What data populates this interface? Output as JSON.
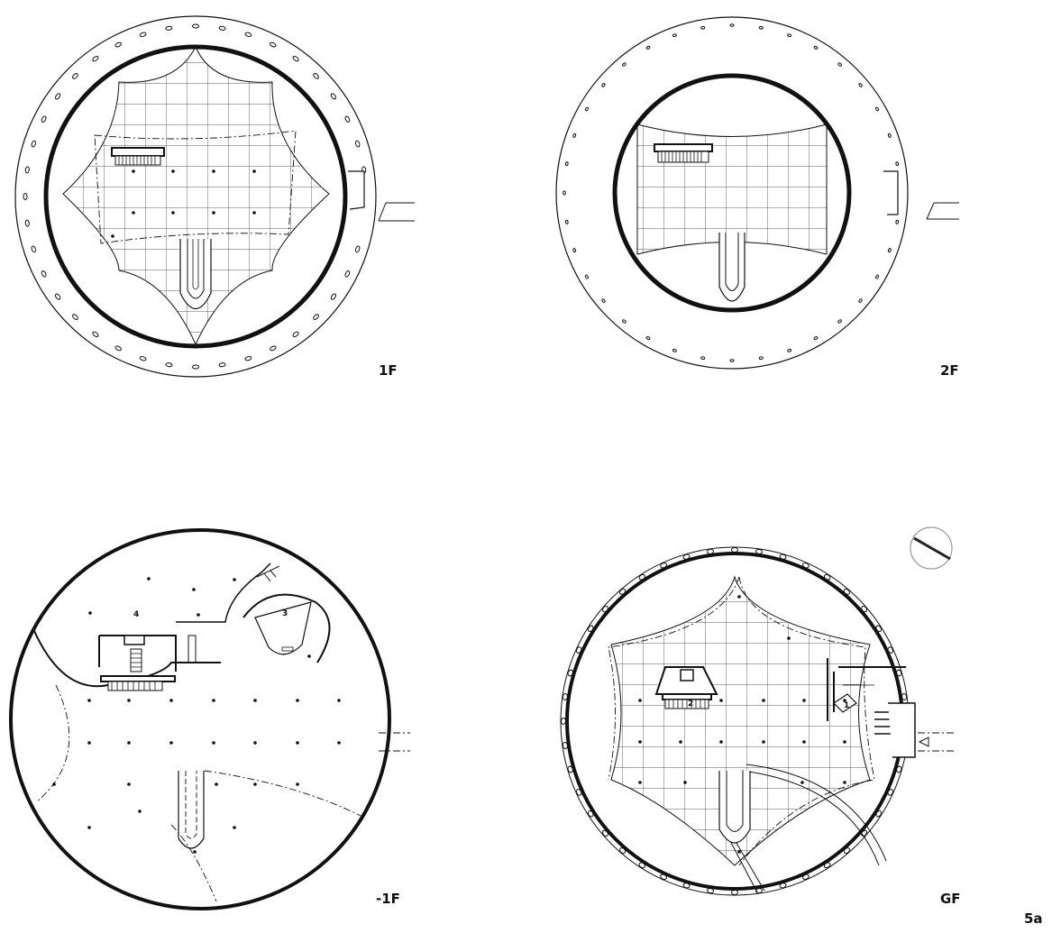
{
  "figure_label": "5a",
  "plans": [
    {
      "id": "plan-1f",
      "label": "1F"
    },
    {
      "id": "plan-2f",
      "label": "2F"
    },
    {
      "id": "plan-basement",
      "label": "-1F",
      "room_numbers": [
        "3",
        "4"
      ]
    },
    {
      "id": "plan-ground",
      "label": "GF",
      "room_numbers": [
        "1",
        "2"
      ]
    }
  ],
  "style": {
    "line_color": "#111111",
    "background": "#ffffff"
  },
  "icons": [
    "north-arrow-icon",
    "entrance-arrow-icon"
  ]
}
